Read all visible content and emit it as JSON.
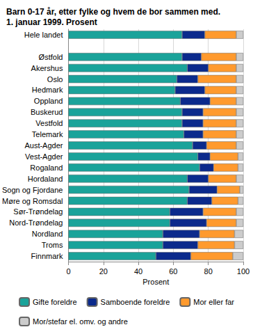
{
  "chart_data": {
    "type": "bar",
    "orientation": "horizontal",
    "stacked": true,
    "title": "Barn 0-17 år, etter fylke og hvem de bor sammen med.\n1. januar 1999. Prosent",
    "x_label": "Prosent",
    "categories": [
      "Hele landet",
      null,
      "Østfold",
      "Akershus",
      "Oslo",
      "Hedmark",
      "Oppland",
      "Buskerud",
      "Vestfold",
      "Telemark",
      "Aust-Agder",
      "Vest-Agder",
      "Rogaland",
      "Hordaland",
      "Sogn og Fjordane",
      "Møre og Romsdal",
      "Sør-Trøndelag",
      "Nord-Trøndelag",
      "Nordland",
      "Troms",
      "Finnmark"
    ],
    "series": [
      {
        "name": "Gifte foreldre",
        "color": "#1aa39a",
        "values": [
          65,
          null,
          65,
          68,
          62,
          61,
          64,
          65,
          65,
          66,
          71,
          74,
          75,
          68,
          69,
          68,
          58,
          58,
          54,
          54,
          50
        ]
      },
      {
        "name": "Samboende foreldre",
        "color": "#0b2a8c",
        "values": [
          13,
          null,
          11,
          12,
          12,
          17,
          17,
          12,
          12,
          11,
          8,
          7,
          8,
          12,
          16,
          14,
          19,
          21,
          21,
          20,
          20
        ]
      },
      {
        "name": "Mor eller far",
        "color": "#ff9a2e",
        "values": [
          18,
          null,
          20,
          16,
          22,
          18,
          15,
          19,
          19,
          19,
          17,
          16,
          14,
          16,
          13,
          15,
          19,
          17,
          20,
          21,
          24
        ]
      },
      {
        "name": "Mor/stefar el. omv. og andre",
        "color": "#cccccc",
        "values": [
          4,
          null,
          4,
          4,
          4,
          4,
          4,
          4,
          4,
          4,
          4,
          3,
          3,
          4,
          2,
          3,
          4,
          4,
          5,
          5,
          6
        ]
      }
    ],
    "xlim": [
      0,
      100
    ],
    "xticks": [
      0,
      20,
      40,
      60,
      80,
      100
    ],
    "grid": true,
    "legend": "bottom"
  }
}
